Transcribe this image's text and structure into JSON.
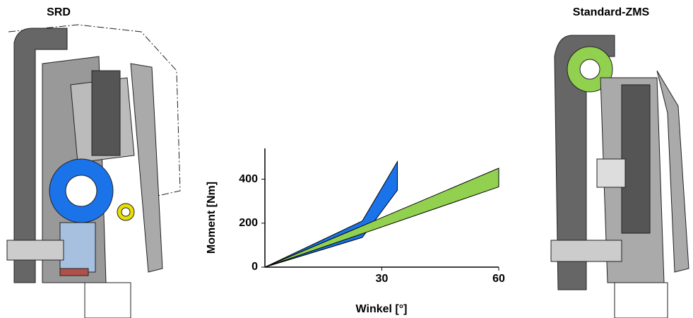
{
  "left_title": "SRD",
  "right_title": "Standard-ZMS",
  "chart_data": {
    "type": "band",
    "x_label": "Winkel [°]",
    "y_label": "Moment [Nm]",
    "xlim": [
      0,
      60
    ],
    "ylim": [
      0,
      540
    ],
    "xticks": [
      30,
      60
    ],
    "yticks": [
      0,
      200,
      400
    ],
    "series": [
      {
        "color": "#1a73e8",
        "x": [
          0,
          25,
          34
        ],
        "upper": [
          0,
          210,
          480
        ],
        "lower": [
          0,
          135,
          350
        ]
      },
      {
        "color": "#92d050",
        "x": [
          0,
          60
        ],
        "upper": [
          0,
          450
        ],
        "lower": [
          0,
          365
        ]
      }
    ]
  }
}
